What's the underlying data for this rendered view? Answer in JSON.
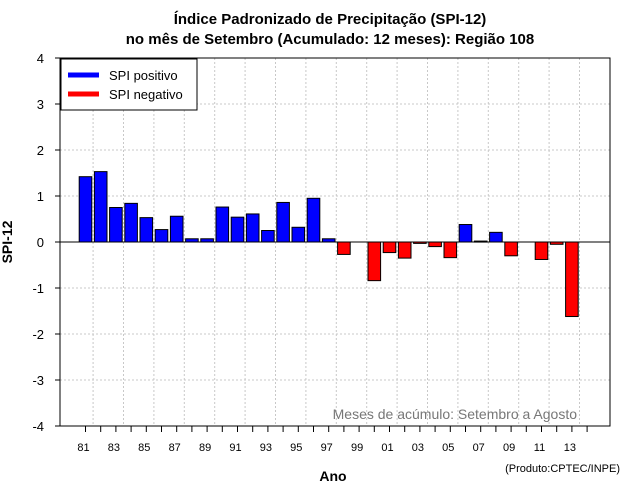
{
  "chart_data": {
    "type": "bar",
    "title": [
      "Índice Padronizado de Precipitação (SPI-12)",
      "no mês de Setembro (Acumulado: 12 meses): Região 108"
    ],
    "xlabel": "Ano",
    "ylabel": "SPI-12",
    "ylim": [
      -4,
      4
    ],
    "yticks": [
      4,
      3,
      2,
      1,
      0,
      -1,
      -2,
      -3,
      -4
    ],
    "grid": true,
    "legend": {
      "position": "top-left",
      "entries": [
        {
          "label": "SPI positivo",
          "color": "#0000ff"
        },
        {
          "label": "SPI negativo",
          "color": "#ff0000"
        }
      ]
    },
    "categories": [
      "81",
      "82",
      "83",
      "84",
      "85",
      "86",
      "87",
      "88",
      "89",
      "90",
      "91",
      "92",
      "93",
      "94",
      "95",
      "96",
      "97",
      "98",
      "99",
      "00",
      "01",
      "02",
      "03",
      "04",
      "05",
      "06",
      "07",
      "08",
      "09",
      "10",
      "11",
      "12",
      "13"
    ],
    "values": [
      1.42,
      1.53,
      0.75,
      0.84,
      0.53,
      0.27,
      0.56,
      0.07,
      0.07,
      0.76,
      0.54,
      0.61,
      0.25,
      0.86,
      0.32,
      0.95,
      0.07,
      -0.27,
      0.0,
      -0.84,
      -0.23,
      -0.35,
      -0.03,
      -0.1,
      -0.34,
      0.38,
      0.02,
      0.21,
      -0.3,
      0.0,
      -0.38,
      -0.05,
      -1.62
    ],
    "xtick_labels": [
      "81",
      "83",
      "85",
      "87",
      "89",
      "91",
      "93",
      "95",
      "97",
      "99",
      "01",
      "03",
      "05",
      "07",
      "09",
      "11",
      "13"
    ],
    "annotation": "Meses de acúmulo: Setembro a Agosto",
    "credit": "(Produto:CPTEC/INPE)"
  }
}
